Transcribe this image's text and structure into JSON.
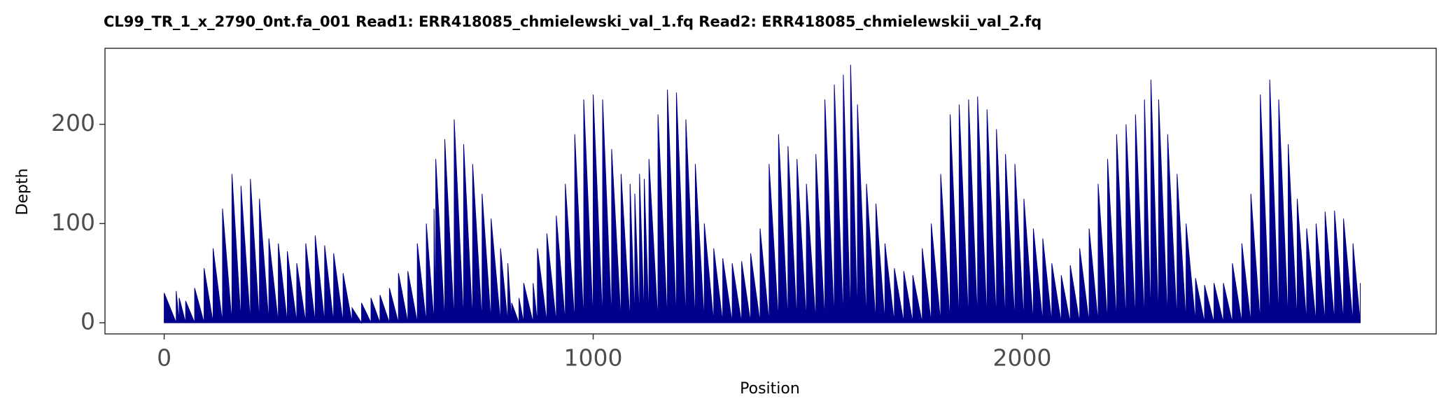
{
  "chart_data": {
    "type": "area",
    "title": "CL99_TR_1_x_2790_0nt.fa_001   Read1: ERR418085_chmielewski_val_1.fq   Read2: ERR418085_chmielewskii_val_2.fq",
    "x_label": "Position",
    "y_label": "Depth",
    "color": "#00008b",
    "x": [
      0,
      28,
      35,
      50,
      71,
      93,
      114,
      136,
      158,
      179,
      201,
      222,
      244,
      266,
      287,
      309,
      330,
      352,
      374,
      395,
      417,
      438,
      460,
      482,
      503,
      525,
      546,
      568,
      590,
      611,
      629,
      633,
      654,
      676,
      698,
      719,
      741,
      762,
      784,
      801,
      810,
      827,
      838,
      860,
      870,
      892,
      914,
      935,
      957,
      978,
      1000,
      1022,
      1043,
      1065,
      1086,
      1097,
      1108,
      1119,
      1130,
      1151,
      1173,
      1194,
      1216,
      1238,
      1259,
      1281,
      1302,
      1324,
      1346,
      1367,
      1389,
      1410,
      1432,
      1454,
      1475,
      1497,
      1519,
      1540,
      1562,
      1583,
      1600,
      1616,
      1637,
      1659,
      1680,
      1702,
      1724,
      1745,
      1767,
      1788,
      1810,
      1832,
      1853,
      1875,
      1896,
      1918,
      1940,
      1961,
      1983,
      2004,
      2026,
      2048,
      2069,
      2091,
      2112,
      2134,
      2156,
      2177,
      2199,
      2220,
      2242,
      2264,
      2285,
      2300,
      2318,
      2339,
      2361,
      2382,
      2404,
      2425,
      2447,
      2469,
      2490,
      2512,
      2533,
      2555,
      2577,
      2598,
      2620,
      2641,
      2663,
      2685,
      2706,
      2728,
      2749,
      2771,
      2788
    ],
    "values": [
      30,
      32,
      25,
      22,
      35,
      55,
      75,
      115,
      150,
      138,
      145,
      125,
      85,
      80,
      72,
      60,
      80,
      88,
      78,
      70,
      50,
      15,
      20,
      25,
      28,
      35,
      50,
      52,
      80,
      100,
      115,
      165,
      185,
      205,
      180,
      160,
      130,
      105,
      75,
      60,
      20,
      25,
      40,
      40,
      75,
      90,
      108,
      140,
      190,
      225,
      230,
      225,
      175,
      150,
      140,
      130,
      150,
      145,
      165,
      210,
      235,
      232,
      205,
      160,
      100,
      75,
      65,
      60,
      62,
      70,
      95,
      160,
      190,
      178,
      165,
      140,
      170,
      225,
      240,
      250,
      260,
      220,
      140,
      120,
      80,
      55,
      52,
      48,
      75,
      100,
      150,
      210,
      220,
      225,
      228,
      215,
      195,
      170,
      160,
      125,
      95,
      85,
      60,
      48,
      58,
      75,
      95,
      140,
      165,
      190,
      200,
      210,
      225,
      245,
      225,
      190,
      150,
      100,
      45,
      38,
      40,
      40,
      60,
      80,
      130,
      230,
      245,
      225,
      180,
      125,
      95,
      100,
      112,
      113,
      105,
      80,
      40
    ],
    "xlim": [
      -138,
      2965
    ],
    "ylim": [
      -11.2,
      276.6
    ],
    "xticks": [
      0,
      1000,
      2000
    ],
    "yticks": [
      0,
      100,
      200
    ]
  }
}
